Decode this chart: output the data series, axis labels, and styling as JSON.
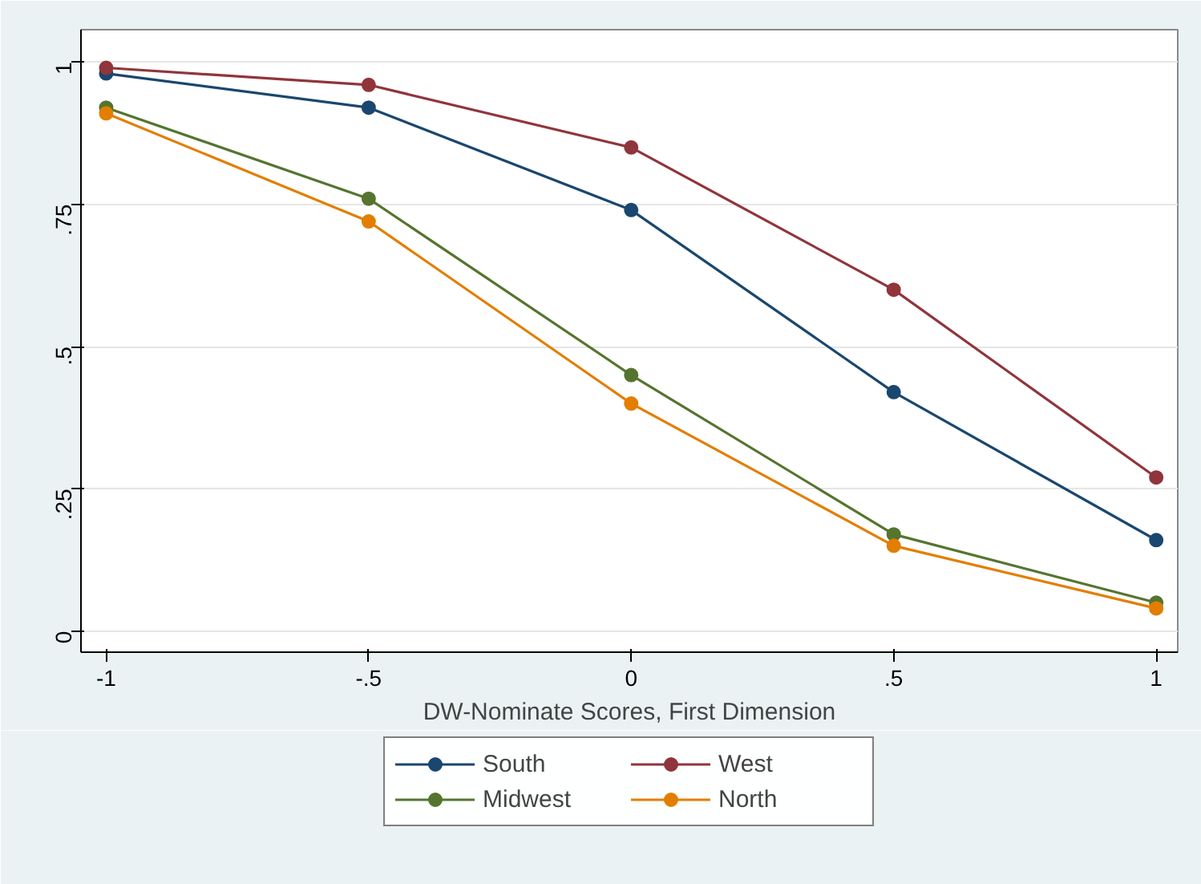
{
  "chart_data": {
    "type": "line",
    "xlabel": "DW-Nominate Scores, First Dimension",
    "x": [
      -1,
      -0.5,
      0,
      0.5,
      1
    ],
    "series": [
      {
        "name": "South",
        "color": "#1a476f",
        "values": [
          0.98,
          0.92,
          0.74,
          0.42,
          0.16
        ]
      },
      {
        "name": "West",
        "color": "#90353b",
        "values": [
          0.99,
          0.96,
          0.85,
          0.6,
          0.27
        ]
      },
      {
        "name": "Midwest",
        "color": "#55752f",
        "values": [
          0.92,
          0.76,
          0.45,
          0.17,
          0.05
        ]
      },
      {
        "name": "North",
        "color": "#e37e00",
        "values": [
          0.91,
          0.72,
          0.4,
          0.15,
          0.04
        ]
      }
    ],
    "xlim": [
      -1.048,
      1.041
    ],
    "ylim": [
      -0.037,
      1.057
    ],
    "xticks": [
      {
        "value": -1,
        "label": "-1"
      },
      {
        "value": -0.5,
        "label": "-.5"
      },
      0,
      {
        "value": 0.5,
        "label": ".5"
      },
      1
    ],
    "yticks": [
      0,
      {
        "value": 0.25,
        "label": ".25"
      },
      {
        "value": 0.5,
        "label": ".5"
      },
      {
        "value": 0.75,
        "label": ".75"
      },
      1
    ],
    "grid": "y",
    "legend": "bottom",
    "marker": "circle",
    "line_style": "solid"
  }
}
